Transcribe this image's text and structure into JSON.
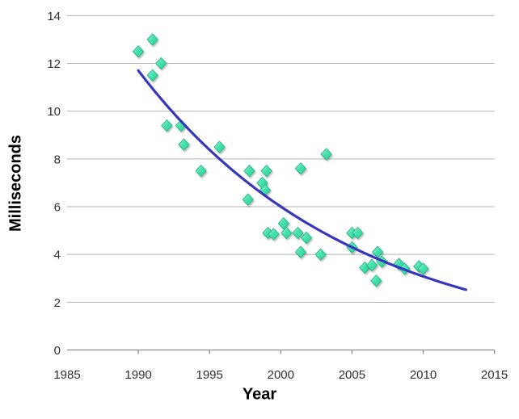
{
  "chart_data": {
    "type": "scatter",
    "title": "",
    "xlabel": "Year",
    "ylabel": "Milliseconds",
    "xlim": [
      1985,
      2015
    ],
    "ylim": [
      0,
      14
    ],
    "x_ticks": [
      1985,
      1990,
      1995,
      2000,
      2005,
      2010,
      2015
    ],
    "y_ticks": [
      0,
      2,
      4,
      6,
      8,
      10,
      12,
      14
    ],
    "grid": "horizontal-only",
    "legend": "none",
    "series": [
      {
        "name": "observed-latency",
        "type": "scatter",
        "marker": "diamond",
        "points": [
          [
            1990.0,
            12.5
          ],
          [
            1991.0,
            13.0
          ],
          [
            1991.0,
            11.5
          ],
          [
            1991.6,
            12.0
          ],
          [
            1992.0,
            9.4
          ],
          [
            1993.0,
            9.4
          ],
          [
            1993.2,
            8.6
          ],
          [
            1994.4,
            7.5
          ],
          [
            1995.7,
            8.5
          ],
          [
            1997.7,
            6.3
          ],
          [
            1997.8,
            7.5
          ],
          [
            1998.7,
            7.0
          ],
          [
            1998.9,
            6.7
          ],
          [
            1999.0,
            7.5
          ],
          [
            1999.1,
            4.9
          ],
          [
            1999.5,
            4.85
          ],
          [
            2000.2,
            5.3
          ],
          [
            2000.4,
            4.9
          ],
          [
            2001.2,
            4.9
          ],
          [
            2001.4,
            7.6
          ],
          [
            2001.4,
            4.1
          ],
          [
            2001.8,
            4.7
          ],
          [
            2002.8,
            4.0
          ],
          [
            2003.2,
            8.2
          ],
          [
            2005.0,
            4.9
          ],
          [
            2005.4,
            4.9
          ],
          [
            2005.0,
            4.3
          ],
          [
            2005.9,
            3.45
          ],
          [
            2006.4,
            3.55
          ],
          [
            2006.8,
            4.1
          ],
          [
            2006.7,
            2.9
          ],
          [
            2007.1,
            3.7
          ],
          [
            2008.3,
            3.6
          ],
          [
            2008.7,
            3.4
          ],
          [
            2009.7,
            3.5
          ],
          [
            2010.0,
            3.4
          ]
        ]
      },
      {
        "name": "exponential-trendline",
        "type": "line",
        "fit": {
          "form": "a*exp(b*(x-x0))",
          "a": 11.7,
          "b": -0.0667,
          "x0": 1990
        },
        "x_range": [
          1990,
          2013.1
        ]
      }
    ],
    "colors": {
      "marker_fill": "#45e2ab",
      "marker_fill_light": "#aef6de",
      "marker_fill_dark": "#2bd09c",
      "marker_stroke": "#2fb98a",
      "trendline": "#3737be",
      "gridline": "#b3b3b3",
      "axis_line": "#8c8c8c",
      "tick_text": "#2e2e2e",
      "axis_title_text": "#000000",
      "background": "#ffffff"
    }
  }
}
